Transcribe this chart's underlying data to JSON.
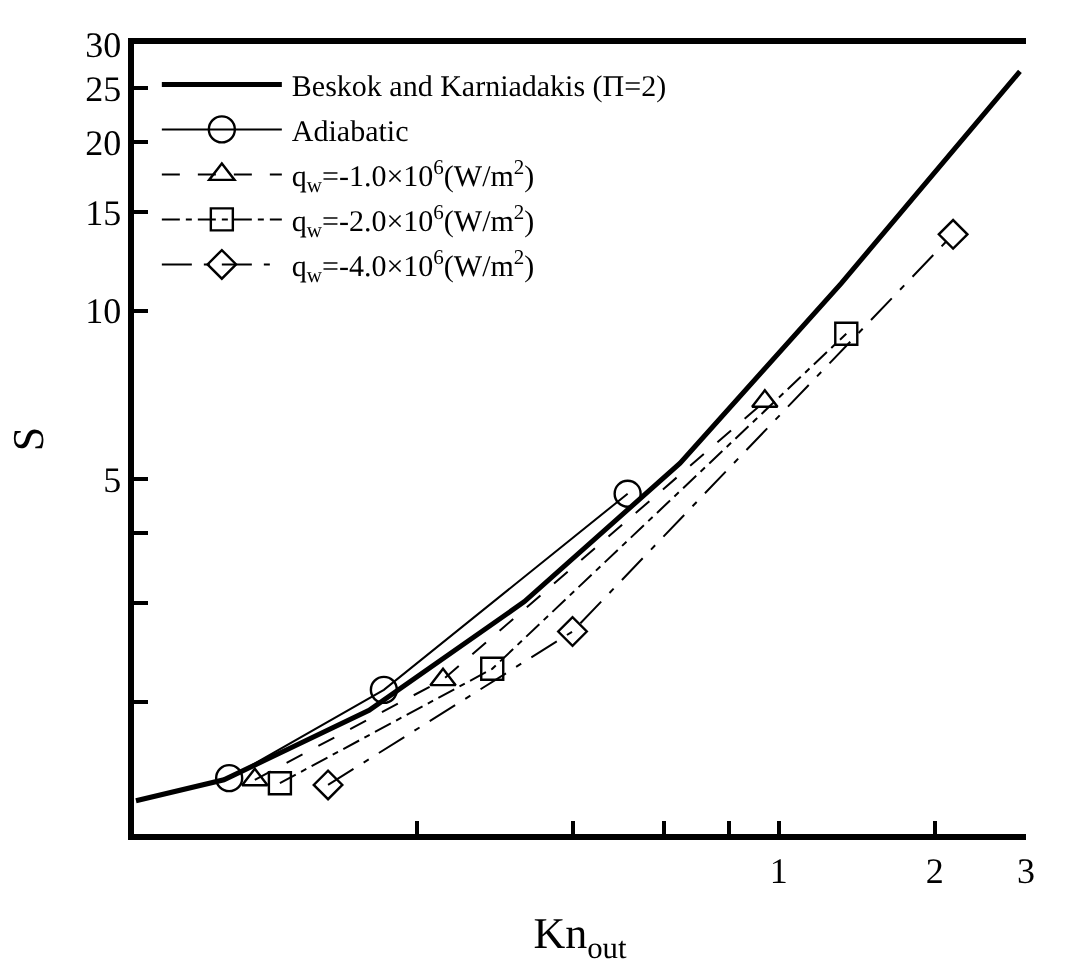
{
  "chart_data": {
    "type": "line",
    "xlabel": "Kn$_{out}$",
    "ylabel": "S",
    "log": "xy",
    "legend": "top left",
    "xlim": [
      0.057,
      3
    ],
    "xticks": [
      {
        "value": 0.2,
        "label": null
      },
      {
        "value": 0.4,
        "label": null
      },
      {
        "value": 0.6,
        "label": null
      },
      {
        "value": 0.8,
        "label": null
      },
      1,
      2,
      3
    ],
    "ylim": [
      1.16,
      30
    ],
    "yticks": [
      {
        "value": 2,
        "label": null
      },
      {
        "value": 3,
        "label": null
      },
      {
        "value": 4,
        "label": null
      },
      5,
      10,
      15,
      20,
      25,
      30
    ],
    "series": [
      {
        "name": "Beskok and Karniadakis (Π=2)",
        "color": "#000000",
        "marker": "none",
        "line_style": "solid",
        "x": [
          0.0575,
          0.085,
          0.162,
          0.323,
          0.645,
          1.32,
          2.92
        ],
        "values": [
          1.33,
          1.45,
          1.93,
          3.02,
          5.34,
          11.2,
          26.8
        ]
      },
      {
        "name": "Adiabatic",
        "color": "#000000",
        "marker": "circle",
        "line_style": "solid",
        "x": [
          0.087,
          0.173,
          0.511
        ],
        "values": [
          1.46,
          2.1,
          4.71
        ]
      },
      {
        "name": "q$_{w}$=-1.0×10$^{6}$(W/m$^{2}$)",
        "color": "#000000",
        "marker": "triangle",
        "line_style": "dashed",
        "x": [
          0.0975,
          0.225,
          0.94
        ],
        "values": [
          1.45,
          2.19,
          6.89
        ]
      },
      {
        "name": "q$_{w}$=-2.0×10$^{6}$(W/m$^{2}$)",
        "color": "#000000",
        "marker": "square",
        "line_style": "dashdot",
        "x": [
          0.109,
          0.28,
          1.35
        ],
        "values": [
          1.43,
          2.29,
          9.1
        ]
      },
      {
        "name": "q$_{w}$=-4.0×10$^{6}$(W/m$^{2}$)",
        "color": "#000000",
        "marker": "diamond",
        "line_style": "longdashdot",
        "x": [
          0.135,
          0.4,
          2.17
        ],
        "values": [
          1.42,
          2.67,
          13.7
        ]
      }
    ]
  }
}
